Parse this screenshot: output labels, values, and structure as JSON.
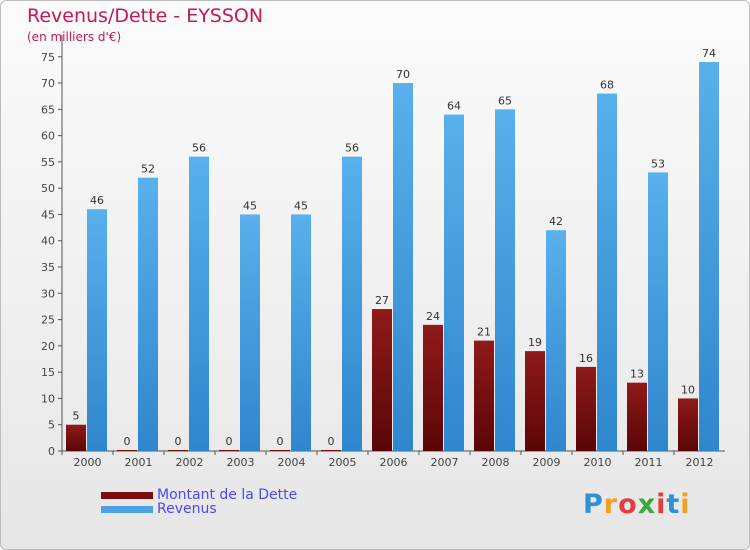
{
  "header": {
    "title": "Revenus/Dette - EYSSON",
    "subtitle": "(en milliers d'€)"
  },
  "chart_data": {
    "type": "bar",
    "categories": [
      "2000",
      "2001",
      "2002",
      "2003",
      "2004",
      "2005",
      "2006",
      "2007",
      "2008",
      "2009",
      "2010",
      "2011",
      "2012"
    ],
    "series": [
      {
        "name": "Montant de la Dette",
        "color": "#7b0d0d",
        "values": [
          5,
          0,
          0,
          0,
          0,
          0,
          27,
          24,
          21,
          19,
          16,
          13,
          10
        ]
      },
      {
        "name": "Revenus",
        "color": "#4aa3e4",
        "values": [
          46,
          52,
          56,
          45,
          45,
          56,
          70,
          64,
          65,
          42,
          68,
          53,
          74
        ]
      }
    ],
    "yticks": [
      0,
      5,
      10,
      15,
      20,
      25,
      30,
      35,
      40,
      45,
      50,
      55,
      60,
      65,
      70,
      75
    ],
    "ylim": [
      0,
      78
    ],
    "grid": false,
    "legend": "bottom-left"
  },
  "legend": [
    {
      "label": "Montant de la Dette",
      "color": "#7b0d0d"
    },
    {
      "label": "Revenus",
      "color": "#4aa3e4"
    }
  ],
  "logo": {
    "letters": [
      "P",
      "r",
      "o",
      "x",
      "i",
      "t",
      "i"
    ],
    "colors": [
      "#2f8fd8",
      "#f0a020",
      "#e04040",
      "#3aa83a",
      "#e04040",
      "#2f8fd8",
      "#f0a020"
    ]
  }
}
